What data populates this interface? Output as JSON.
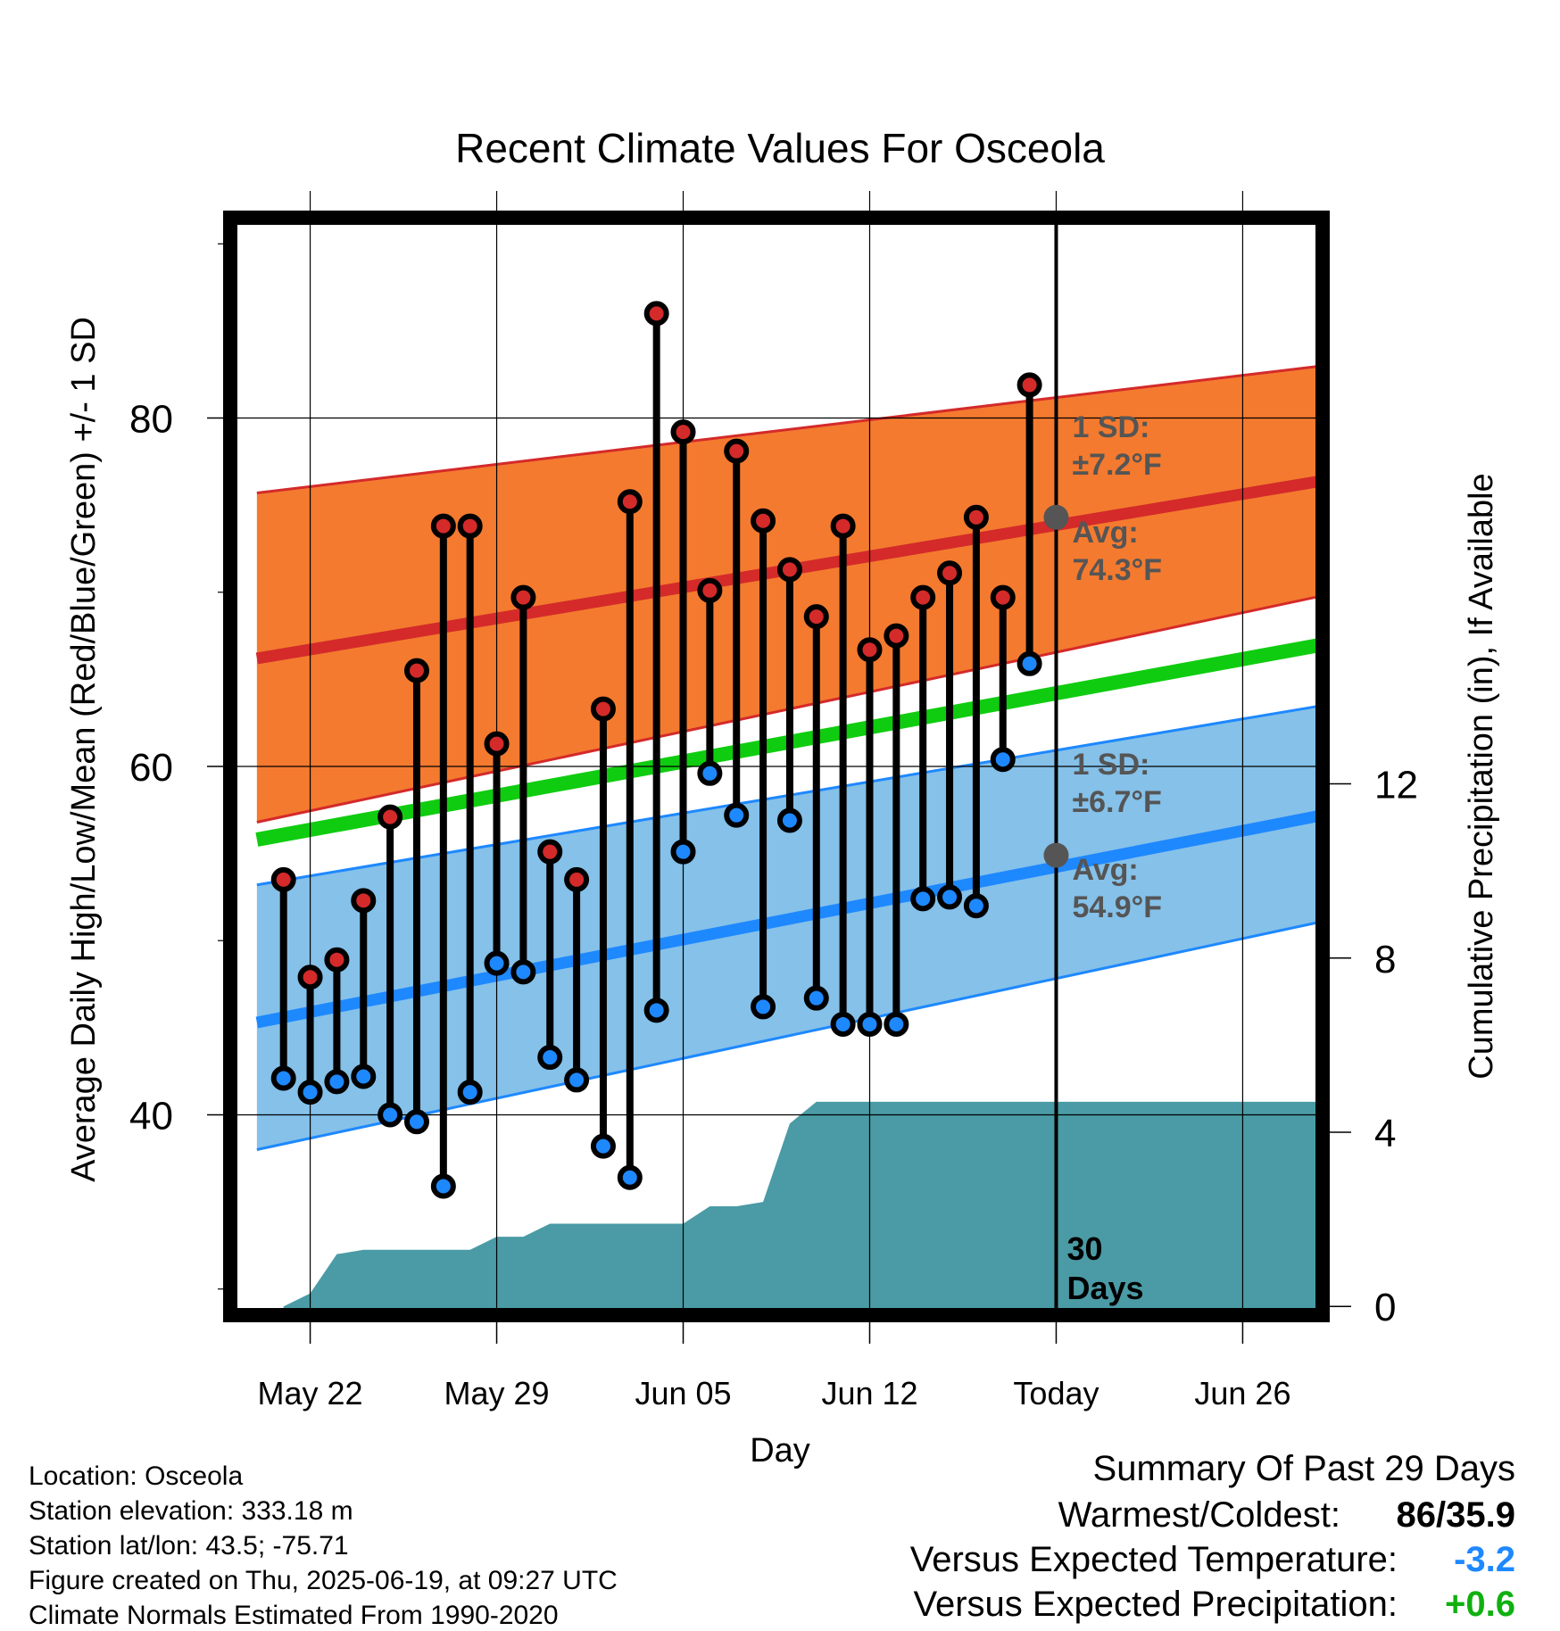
{
  "chart_data": {
    "type": "line",
    "title": "Recent Climate Values For Osceola",
    "xlabel": "Day",
    "ylabel": "Average Daily High/Low/Mean (Red/Blue/Green) +/- 1 SD",
    "y2label": "Cumulative Precipitation (in), If Available",
    "ylim": [
      28.5,
      91.5
    ],
    "y2lim": [
      -0.2,
      25.0
    ],
    "x_range_days": [
      -31,
      10
    ],
    "x_ticks": [
      {
        "day": -28,
        "label": "May 22"
      },
      {
        "day": -21,
        "label": "May 29"
      },
      {
        "day": -14,
        "label": "Jun 05"
      },
      {
        "day": -7,
        "label": "Jun 12"
      },
      {
        "day": 0,
        "label": "Today"
      },
      {
        "day": 7,
        "label": "Jun 26"
      }
    ],
    "y_ticks": [
      40,
      60,
      80
    ],
    "y2_ticks": [
      0,
      4,
      8,
      12
    ],
    "grid": true,
    "colors": {
      "high_band": "#f47a2f",
      "high_avg": "#d42a2a",
      "low_band": "#85c1e9",
      "low_avg": "#1e88ff",
      "mean": "#10cc10",
      "precip": "#4a9ba5",
      "high_marker": "#d42a2a",
      "low_marker": "#1e88ff",
      "avg_marker": "#555555",
      "annotation": "#555555"
    },
    "normals": {
      "x": [
        -30,
        10
      ],
      "high_avg": [
        66.2,
        76.4
      ],
      "high_sd_upper": [
        75.7,
        83.0
      ],
      "high_sd_lower": [
        56.8,
        69.8
      ],
      "mean": [
        55.8,
        67.0
      ],
      "low_avg": [
        45.3,
        57.2
      ],
      "low_sd_upper": [
        53.2,
        63.5
      ],
      "low_sd_lower": [
        38.0,
        51.1
      ]
    },
    "series": [
      {
        "name": "High",
        "x": [
          -29,
          -28,
          -27,
          -26,
          -25,
          -24,
          -23,
          -22,
          -21,
          -20,
          -19,
          -18,
          -17,
          -16,
          -15,
          -14,
          -13,
          -12,
          -11,
          -10,
          -9,
          -8,
          -7,
          -6,
          -5,
          -4,
          -3,
          -2,
          -1
        ],
        "values": [
          53.5,
          47.9,
          48.9,
          52.3,
          57.1,
          65.5,
          73.8,
          73.8,
          61.3,
          69.7,
          55.1,
          53.5,
          63.3,
          75.2,
          86.0,
          79.2,
          70.1,
          78.1,
          74.1,
          71.3,
          68.6,
          73.8,
          66.7,
          67.5,
          69.7,
          71.1,
          74.3,
          69.7,
          81.9
        ]
      },
      {
        "name": "Low",
        "x": [
          -29,
          -28,
          -27,
          -26,
          -25,
          -24,
          -23,
          -22,
          -21,
          -20,
          -19,
          -18,
          -17,
          -16,
          -15,
          -14,
          -13,
          -12,
          -11,
          -10,
          -9,
          -8,
          -7,
          -6,
          -5,
          -4,
          -3,
          -2,
          -1
        ],
        "values": [
          42.1,
          41.3,
          41.9,
          42.2,
          40.0,
          39.6,
          35.9,
          41.3,
          48.7,
          48.2,
          43.3,
          42.0,
          38.2,
          36.4,
          46.0,
          55.1,
          59.6,
          57.2,
          46.2,
          56.9,
          46.7,
          45.2,
          45.2,
          45.2,
          52.4,
          52.5,
          52.0,
          60.4,
          65.9
        ]
      }
    ],
    "precipitation": {
      "x": [
        -29,
        -28,
        -27,
        -26,
        -25,
        -24,
        -23,
        -22,
        -21,
        -20,
        -19,
        -18,
        -17,
        -16,
        -15,
        -14,
        -13,
        -12,
        -11,
        -10,
        -9,
        -8,
        -7,
        -6,
        -5,
        -4,
        -3,
        -2,
        -1,
        0,
        10
      ],
      "values": [
        0.0,
        0.3,
        1.2,
        1.3,
        1.3,
        1.3,
        1.3,
        1.3,
        1.6,
        1.6,
        1.9,
        1.9,
        1.9,
        1.9,
        1.9,
        1.9,
        2.3,
        2.3,
        2.4,
        4.2,
        4.7,
        4.7,
        4.7,
        4.7,
        4.7,
        4.7,
        4.7,
        4.7,
        4.7,
        4.7,
        4.7
      ]
    },
    "today_marker": {
      "day": 0,
      "label_line1": "30",
      "label_line2": "Days"
    },
    "annotations": {
      "high_sd_l1": "1 SD:",
      "high_sd_l2": "±7.2°F",
      "high_avg_l1": "Avg:",
      "high_avg_l2": "74.3°F",
      "high_avg_value": 74.3,
      "low_sd_l1": "1 SD:",
      "low_sd_l2": "±6.7°F",
      "low_avg_l1": "Avg:",
      "low_avg_l2": "54.9°F",
      "low_avg_value": 54.9
    }
  },
  "info": {
    "location": "Location: Osceola",
    "elevation": "Station elevation: 333.18 m",
    "latlon": "Station lat/lon: 43.5; -75.71",
    "created": "Figure created on Thu, 2025-06-19, at 09:27 UTC",
    "normals": "Climate Normals Estimated From 1990-2020"
  },
  "summary": {
    "title": "Summary Of Past 29 Days",
    "warm_label": "Warmest/Coldest:",
    "warm_value": "86/35.9",
    "temp_label": "Versus Expected Temperature:",
    "temp_value": "-3.2",
    "temp_color": "#1e88ff",
    "precip_label": "Versus Expected Precipitation:",
    "precip_value": "+0.6",
    "precip_color": "#10b010"
  }
}
